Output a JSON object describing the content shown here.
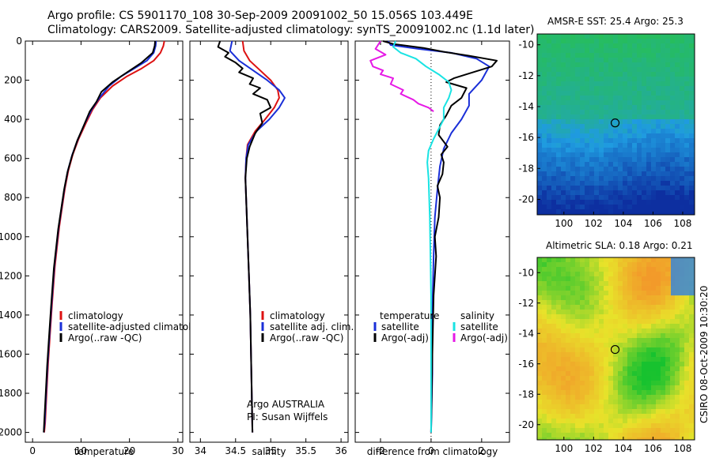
{
  "header": {
    "title1": "Argo profile: CS 5901170_108 30-Sep-2009 20091002_50 15.056S 103.449E",
    "title2": "Climatology: CARS2009. Satellite-adjusted climatology: synTS_20091002.nc (1.1d later)"
  },
  "footer": {
    "stamp": "CSIRO 08-Oct-2009 10:30:20"
  },
  "colors": {
    "climatology": "#dd1111",
    "satellite": "#1a2fd8",
    "argo": "#000000",
    "satellite_salinity": "#19e3e3",
    "argo_salinity": "#e619e6",
    "sst_map": [
      "#27c24a",
      "#1f9be0",
      "#0d2fa0"
    ],
    "sla_map": [
      "#17c22f",
      "#e8e22a",
      "#f29a2a"
    ]
  },
  "chart_data": [
    {
      "type": "line",
      "panel": "temperature",
      "xlabel": "temperature",
      "ylabel": "",
      "xlim": [
        -1.5,
        31
      ],
      "ylim": [
        2050,
        0
      ],
      "xticks": [
        0,
        10,
        20,
        30
      ],
      "yticks": [
        0,
        200,
        400,
        600,
        800,
        1000,
        1200,
        1400,
        1600,
        1800,
        2000
      ],
      "legend": [
        "climatology",
        "satellite-adjusted climatology",
        "Argo(..raw -QC)"
      ],
      "legend_position": "lower-right",
      "series": [
        {
          "name": "climatology",
          "color_key": "climatology",
          "x": [
            27.2,
            27.0,
            26.4,
            25.0,
            22.5,
            19.5,
            16.5,
            14.0,
            12.4,
            11.0,
            9.5,
            8.3,
            7.4,
            6.7,
            6.1,
            5.5,
            4.6,
            4.0,
            3.6,
            3.2,
            2.9,
            2.6,
            2.4
          ],
          "y": [
            0,
            25,
            60,
            100,
            140,
            180,
            230,
            290,
            350,
            420,
            500,
            580,
            660,
            750,
            850,
            950,
            1150,
            1350,
            1500,
            1650,
            1800,
            1950,
            2000
          ]
        },
        {
          "name": "satellite-adjusted climatology",
          "color_key": "satellite",
          "x": [
            25.5,
            25.4,
            25.0,
            23.6,
            21.0,
            18.3,
            15.8,
            13.8,
            12.2,
            10.8,
            9.4,
            8.2,
            7.3,
            6.6,
            6.0,
            5.4,
            4.5,
            3.9,
            3.5,
            3.1,
            2.8,
            2.5,
            2.3
          ],
          "y": [
            0,
            25,
            60,
            100,
            140,
            180,
            230,
            290,
            350,
            420,
            500,
            580,
            660,
            750,
            850,
            950,
            1150,
            1350,
            1500,
            1650,
            1800,
            1950,
            2000
          ]
        },
        {
          "name": "Argo(..raw -QC)",
          "color_key": "argo",
          "x": [
            25.3,
            25.2,
            24.8,
            22.5,
            19.5,
            16.5,
            14.2,
            13.2,
            11.8,
            10.6,
            9.2,
            8.1,
            7.2,
            6.5,
            5.9,
            5.3,
            4.4,
            3.8,
            3.4,
            3.0,
            2.7,
            2.4,
            2.3
          ],
          "y": [
            0,
            25,
            60,
            110,
            160,
            210,
            260,
            310,
            360,
            430,
            510,
            590,
            670,
            760,
            860,
            960,
            1160,
            1360,
            1510,
            1660,
            1810,
            1950,
            2000
          ]
        }
      ]
    },
    {
      "type": "line",
      "panel": "salinity",
      "xlabel": "salinity",
      "ylabel": "",
      "xlim": [
        33.85,
        36.1
      ],
      "ylim": [
        2050,
        0
      ],
      "xticks": [
        34,
        34.5,
        35,
        35.5,
        36
      ],
      "xtick_labels": [
        "34",
        "34.5",
        "35",
        "35.5",
        "36"
      ],
      "legend": [
        "climatology",
        "satellite adj. clim.",
        "Argo(..raw -QC)"
      ],
      "legend_position": "lower-right",
      "annotations": [
        "Argo AUSTRALIA",
        "PI: Susan Wijffels"
      ],
      "series": [
        {
          "name": "climatology",
          "color_key": "climatology",
          "x": [
            34.6,
            34.62,
            34.7,
            34.85,
            35.0,
            35.1,
            35.12,
            35.05,
            34.92,
            34.78,
            34.67,
            34.65,
            34.64,
            34.65,
            34.67,
            34.69,
            34.71,
            34.72,
            34.73,
            34.74
          ],
          "y": [
            0,
            50,
            100,
            150,
            200,
            250,
            290,
            340,
            400,
            460,
            530,
            600,
            700,
            800,
            1000,
            1200,
            1400,
            1600,
            1800,
            2000
          ]
        },
        {
          "name": "satellite adj. clim.",
          "color_key": "satellite",
          "x": [
            34.45,
            34.42,
            34.55,
            34.75,
            34.95,
            35.12,
            35.2,
            35.12,
            34.98,
            34.8,
            34.68,
            34.65,
            34.64,
            34.65,
            34.67,
            34.69,
            34.71,
            34.72,
            34.73,
            34.74
          ],
          "y": [
            0,
            50,
            100,
            150,
            200,
            250,
            290,
            340,
            400,
            460,
            530,
            600,
            700,
            800,
            1000,
            1200,
            1400,
            1600,
            1800,
            2000
          ]
        },
        {
          "name": "Argo(..raw -QC)",
          "color_key": "argo",
          "x": [
            34.28,
            34.25,
            34.4,
            34.35,
            34.5,
            34.6,
            34.55,
            34.75,
            34.7,
            34.85,
            34.75,
            34.95,
            35.0,
            34.85,
            34.88,
            34.78,
            34.7,
            34.66,
            34.64,
            34.65,
            34.67,
            34.69,
            34.71,
            34.72,
            34.73,
            34.74
          ],
          "y": [
            0,
            30,
            60,
            80,
            110,
            140,
            160,
            190,
            220,
            240,
            270,
            300,
            340,
            370,
            420,
            470,
            540,
            600,
            700,
            800,
            1000,
            1200,
            1400,
            1600,
            1800,
            2000
          ]
        }
      ]
    },
    {
      "type": "line",
      "panel": "difference",
      "xlabel": "difference from climatology",
      "ylabel": "",
      "xlim": [
        -3,
        3.1
      ],
      "ylim": [
        2050,
        0
      ],
      "xticks": [
        -2,
        0,
        2
      ],
      "legend": [
        "temperature",
        "satellite",
        "Argo(-adj)",
        "salinity",
        "satellite",
        "Argo(-adj)"
      ],
      "legend_position": "lower-right",
      "zero_line": "dotted",
      "series": [
        {
          "name": "temperature satellite",
          "color_key": "satellite",
          "x": [
            -1.7,
            -1.6,
            -0.5,
            0.8,
            1.8,
            2.3,
            2.0,
            1.5,
            1.5,
            1.2,
            0.8,
            0.5,
            0.35,
            0.25,
            0.15,
            0.1,
            0.05,
            0.05,
            0.0
          ],
          "y": [
            0,
            20,
            40,
            60,
            90,
            130,
            200,
            270,
            330,
            400,
            470,
            550,
            640,
            760,
            900,
            1100,
            1400,
            1700,
            2000
          ]
        },
        {
          "name": "temperature Argo(-adj)",
          "color_key": "argo",
          "x": [
            -1.9,
            -1.5,
            -0.3,
            0.5,
            1.5,
            2.6,
            2.4,
            1.4,
            0.9,
            0.6,
            1.4,
            1.2,
            0.8,
            0.6,
            0.35,
            0.3,
            0.65,
            0.4,
            0.5,
            0.45,
            0.25,
            0.35,
            0.3,
            0.15,
            0.2,
            0.1,
            0.05,
            0.0
          ],
          "y": [
            0,
            15,
            35,
            55,
            75,
            100,
            130,
            170,
            190,
            210,
            240,
            290,
            330,
            380,
            430,
            480,
            540,
            580,
            620,
            680,
            740,
            800,
            900,
            1000,
            1100,
            1300,
            1600,
            2000
          ]
        },
        {
          "name": "salinity satellite",
          "color_key": "satellite_salinity",
          "x": [
            -1.4,
            -1.5,
            -1.2,
            -0.6,
            -0.2,
            0.3,
            0.7,
            0.8,
            0.7,
            0.5,
            0.5,
            0.3,
            0.1,
            -0.1,
            -0.15,
            -0.1,
            -0.05,
            0.0,
            0.0
          ],
          "y": [
            0,
            30,
            60,
            90,
            130,
            170,
            210,
            250,
            290,
            340,
            400,
            450,
            500,
            560,
            620,
            700,
            900,
            1300,
            2000
          ]
        },
        {
          "name": "salinity Argo(-adj)",
          "color_key": "argo_salinity",
          "x": [
            -2.0,
            -2.2,
            -1.8,
            -2.4,
            -2.3,
            -1.9,
            -2.0,
            -1.5,
            -1.6,
            -1.1,
            -1.2,
            -0.7,
            -0.5,
            -0.1,
            0.1
          ],
          "y": [
            0,
            40,
            70,
            100,
            130,
            150,
            170,
            190,
            220,
            250,
            270,
            300,
            320,
            340,
            360
          ]
        }
      ]
    },
    {
      "type": "heatmap",
      "panel": "AMSR-E SST",
      "title": "AMSR-E SST: 25.4 Argo: 25.3",
      "color_key": "sst_map",
      "xlim": [
        98.2,
        108.8
      ],
      "ylim": [
        -21,
        -9.3
      ],
      "xticks": [
        100,
        102,
        104,
        106,
        108
      ],
      "yticks": [
        -10,
        -12,
        -14,
        -16,
        -18,
        -20
      ],
      "marker": {
        "lon": 103.449,
        "lat": -15.056
      }
    },
    {
      "type": "heatmap",
      "panel": "Altimetric SLA",
      "title": "Altimetric SLA: 0.18 Argo: 0.21",
      "color_key": "sla_map",
      "xlim": [
        98.2,
        108.8
      ],
      "ylim": [
        -21,
        -9.0
      ],
      "xticks": [
        100,
        102,
        104,
        106,
        108
      ],
      "yticks": [
        -10,
        -12,
        -14,
        -16,
        -18,
        -20
      ],
      "marker": {
        "lon": 103.449,
        "lat": -15.056
      }
    }
  ]
}
